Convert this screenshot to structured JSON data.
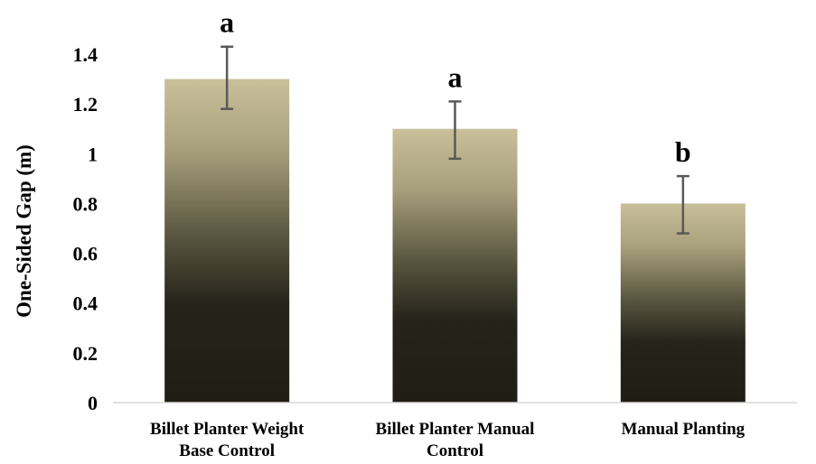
{
  "chart_data": {
    "type": "bar",
    "title": "",
    "xlabel": "",
    "ylabel": "One-Sided Gap (m)",
    "ylim": [
      0,
      1.4
    ],
    "yticks": [
      "0",
      "0.2",
      "0.4",
      "0.6",
      "0.8",
      "1",
      "1.2",
      "1.4"
    ],
    "ytick_values": [
      0,
      0.2,
      0.4,
      0.6,
      0.8,
      1,
      1.2,
      1.4
    ],
    "categories": [
      [
        "Billet Planter Weight",
        "Base Control"
      ],
      [
        "Billet Planter Manual",
        "Control"
      ],
      [
        "Manual Planting"
      ]
    ],
    "values": [
      1.3,
      1.1,
      0.8
    ],
    "error_low": [
      1.18,
      0.98,
      0.68
    ],
    "error_high": [
      1.43,
      1.21,
      0.91
    ],
    "significance_labels": [
      "a",
      "a",
      "b"
    ],
    "grid": false,
    "legend": "none",
    "colors": {
      "bar_top": "#c9c09a",
      "bar_bottom": "#201e14",
      "error_bar": "#595959",
      "axis": "#d9d9d9"
    }
  }
}
